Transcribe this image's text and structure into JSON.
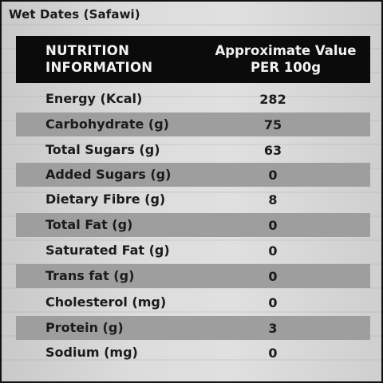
{
  "title": "Wet Dates (Safawi)",
  "header": {
    "col1_line1": "NUTRITION",
    "col1_line2": "INFORMATION",
    "col2_line1": "Approximate Value",
    "col2_line2": "PER 100g"
  },
  "rows": [
    {
      "nutrient": "Energy (Kcal)",
      "value": "282"
    },
    {
      "nutrient": "Carbohydrate (g)",
      "value": "75"
    },
    {
      "nutrient": "Total Sugars (g)",
      "value": "63"
    },
    {
      "nutrient": "Added Sugars (g)",
      "value": "0"
    },
    {
      "nutrient": "Dietary Fibre (g)",
      "value": "8"
    },
    {
      "nutrient": "Total Fat (g)",
      "value": "0"
    },
    {
      "nutrient": "Saturated Fat (g)",
      "value": "0"
    },
    {
      "nutrient": "Trans fat (g)",
      "value": "0"
    },
    {
      "nutrient": "Cholesterol (mg)",
      "value": "0"
    },
    {
      "nutrient": "Protein (g)",
      "value": "3"
    },
    {
      "nutrient": "Sodium (mg)",
      "value": "0"
    }
  ]
}
